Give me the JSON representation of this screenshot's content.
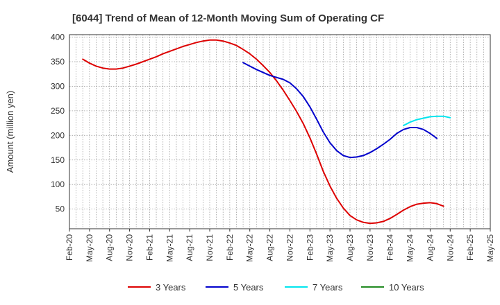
{
  "chart_data": {
    "type": "line",
    "title": "[6044]  Trend of Mean of 12-Month Moving Sum of Operating CF",
    "xlabel": "",
    "ylabel": "Amount (million yen)",
    "ylim": [
      10,
      405
    ],
    "yticks": [
      50,
      100,
      150,
      200,
      250,
      300,
      350,
      400
    ],
    "x_tick_labels": [
      "Feb-20",
      "May-20",
      "Aug-20",
      "Nov-20",
      "Feb-21",
      "May-21",
      "Aug-21",
      "Nov-21",
      "Feb-22",
      "May-22",
      "Aug-22",
      "Nov-22",
      "Feb-23",
      "May-23",
      "Aug-23",
      "Nov-23",
      "Feb-24",
      "May-24",
      "Aug-24",
      "Nov-24",
      "Feb-25",
      "May-25"
    ],
    "x_unit": "months since Feb-20",
    "x_range": [
      0,
      63
    ],
    "grid": true,
    "legend_position": "bottom",
    "series": [
      {
        "name": "3 Years",
        "color": "#dd0000",
        "x": [
          2,
          3,
          4,
          5,
          6,
          7,
          8,
          9,
          10,
          11,
          12,
          13,
          14,
          15,
          16,
          17,
          18,
          19,
          20,
          21,
          22,
          23,
          24,
          25,
          26,
          27,
          28,
          29,
          30,
          31,
          32,
          33,
          34,
          35,
          36,
          37,
          38,
          39,
          40,
          41,
          42,
          43,
          44,
          45,
          46,
          47,
          48,
          49,
          50,
          51,
          52,
          53,
          54,
          55,
          56,
          57,
          58,
          59,
          60
        ],
        "values": [
          355,
          347,
          341,
          337,
          335,
          335,
          337,
          341,
          345,
          350,
          355,
          360,
          366,
          371,
          376,
          381,
          385,
          389,
          392,
          394,
          394,
          392,
          388,
          383,
          375,
          366,
          355,
          342,
          328,
          311,
          292,
          271,
          249,
          224,
          195,
          162,
          127,
          97,
          72,
          52,
          37,
          28,
          23,
          21,
          22,
          25,
          31,
          39,
          48,
          55,
          60,
          62,
          63,
          61,
          56,
          null,
          null,
          null,
          null
        ]
      },
      {
        "name": "5 Years",
        "color": "#0000cc",
        "x": [
          26,
          27,
          28,
          29,
          30,
          31,
          32,
          33,
          34,
          35,
          36,
          37,
          38,
          39,
          40,
          41,
          42,
          43,
          44,
          45,
          46,
          47,
          48,
          49,
          50,
          51,
          52,
          53,
          54,
          55,
          56
        ],
        "values": [
          348,
          341,
          334,
          328,
          322,
          318,
          314,
          307,
          295,
          279,
          258,
          233,
          207,
          185,
          169,
          159,
          155,
          156,
          159,
          165,
          173,
          182,
          192,
          204,
          212,
          216,
          216,
          212,
          204,
          194,
          null
        ]
      },
      {
        "name": "7 Years",
        "color": "#00e5ee",
        "x": [
          50,
          51,
          52,
          53,
          54,
          55,
          56,
          57,
          58,
          59,
          60
        ],
        "values": [
          220,
          227,
          232,
          235,
          238,
          239,
          239,
          236,
          null,
          null,
          null
        ]
      },
      {
        "name": "10 Years",
        "color": "#228b22",
        "x": [],
        "values": []
      }
    ]
  }
}
